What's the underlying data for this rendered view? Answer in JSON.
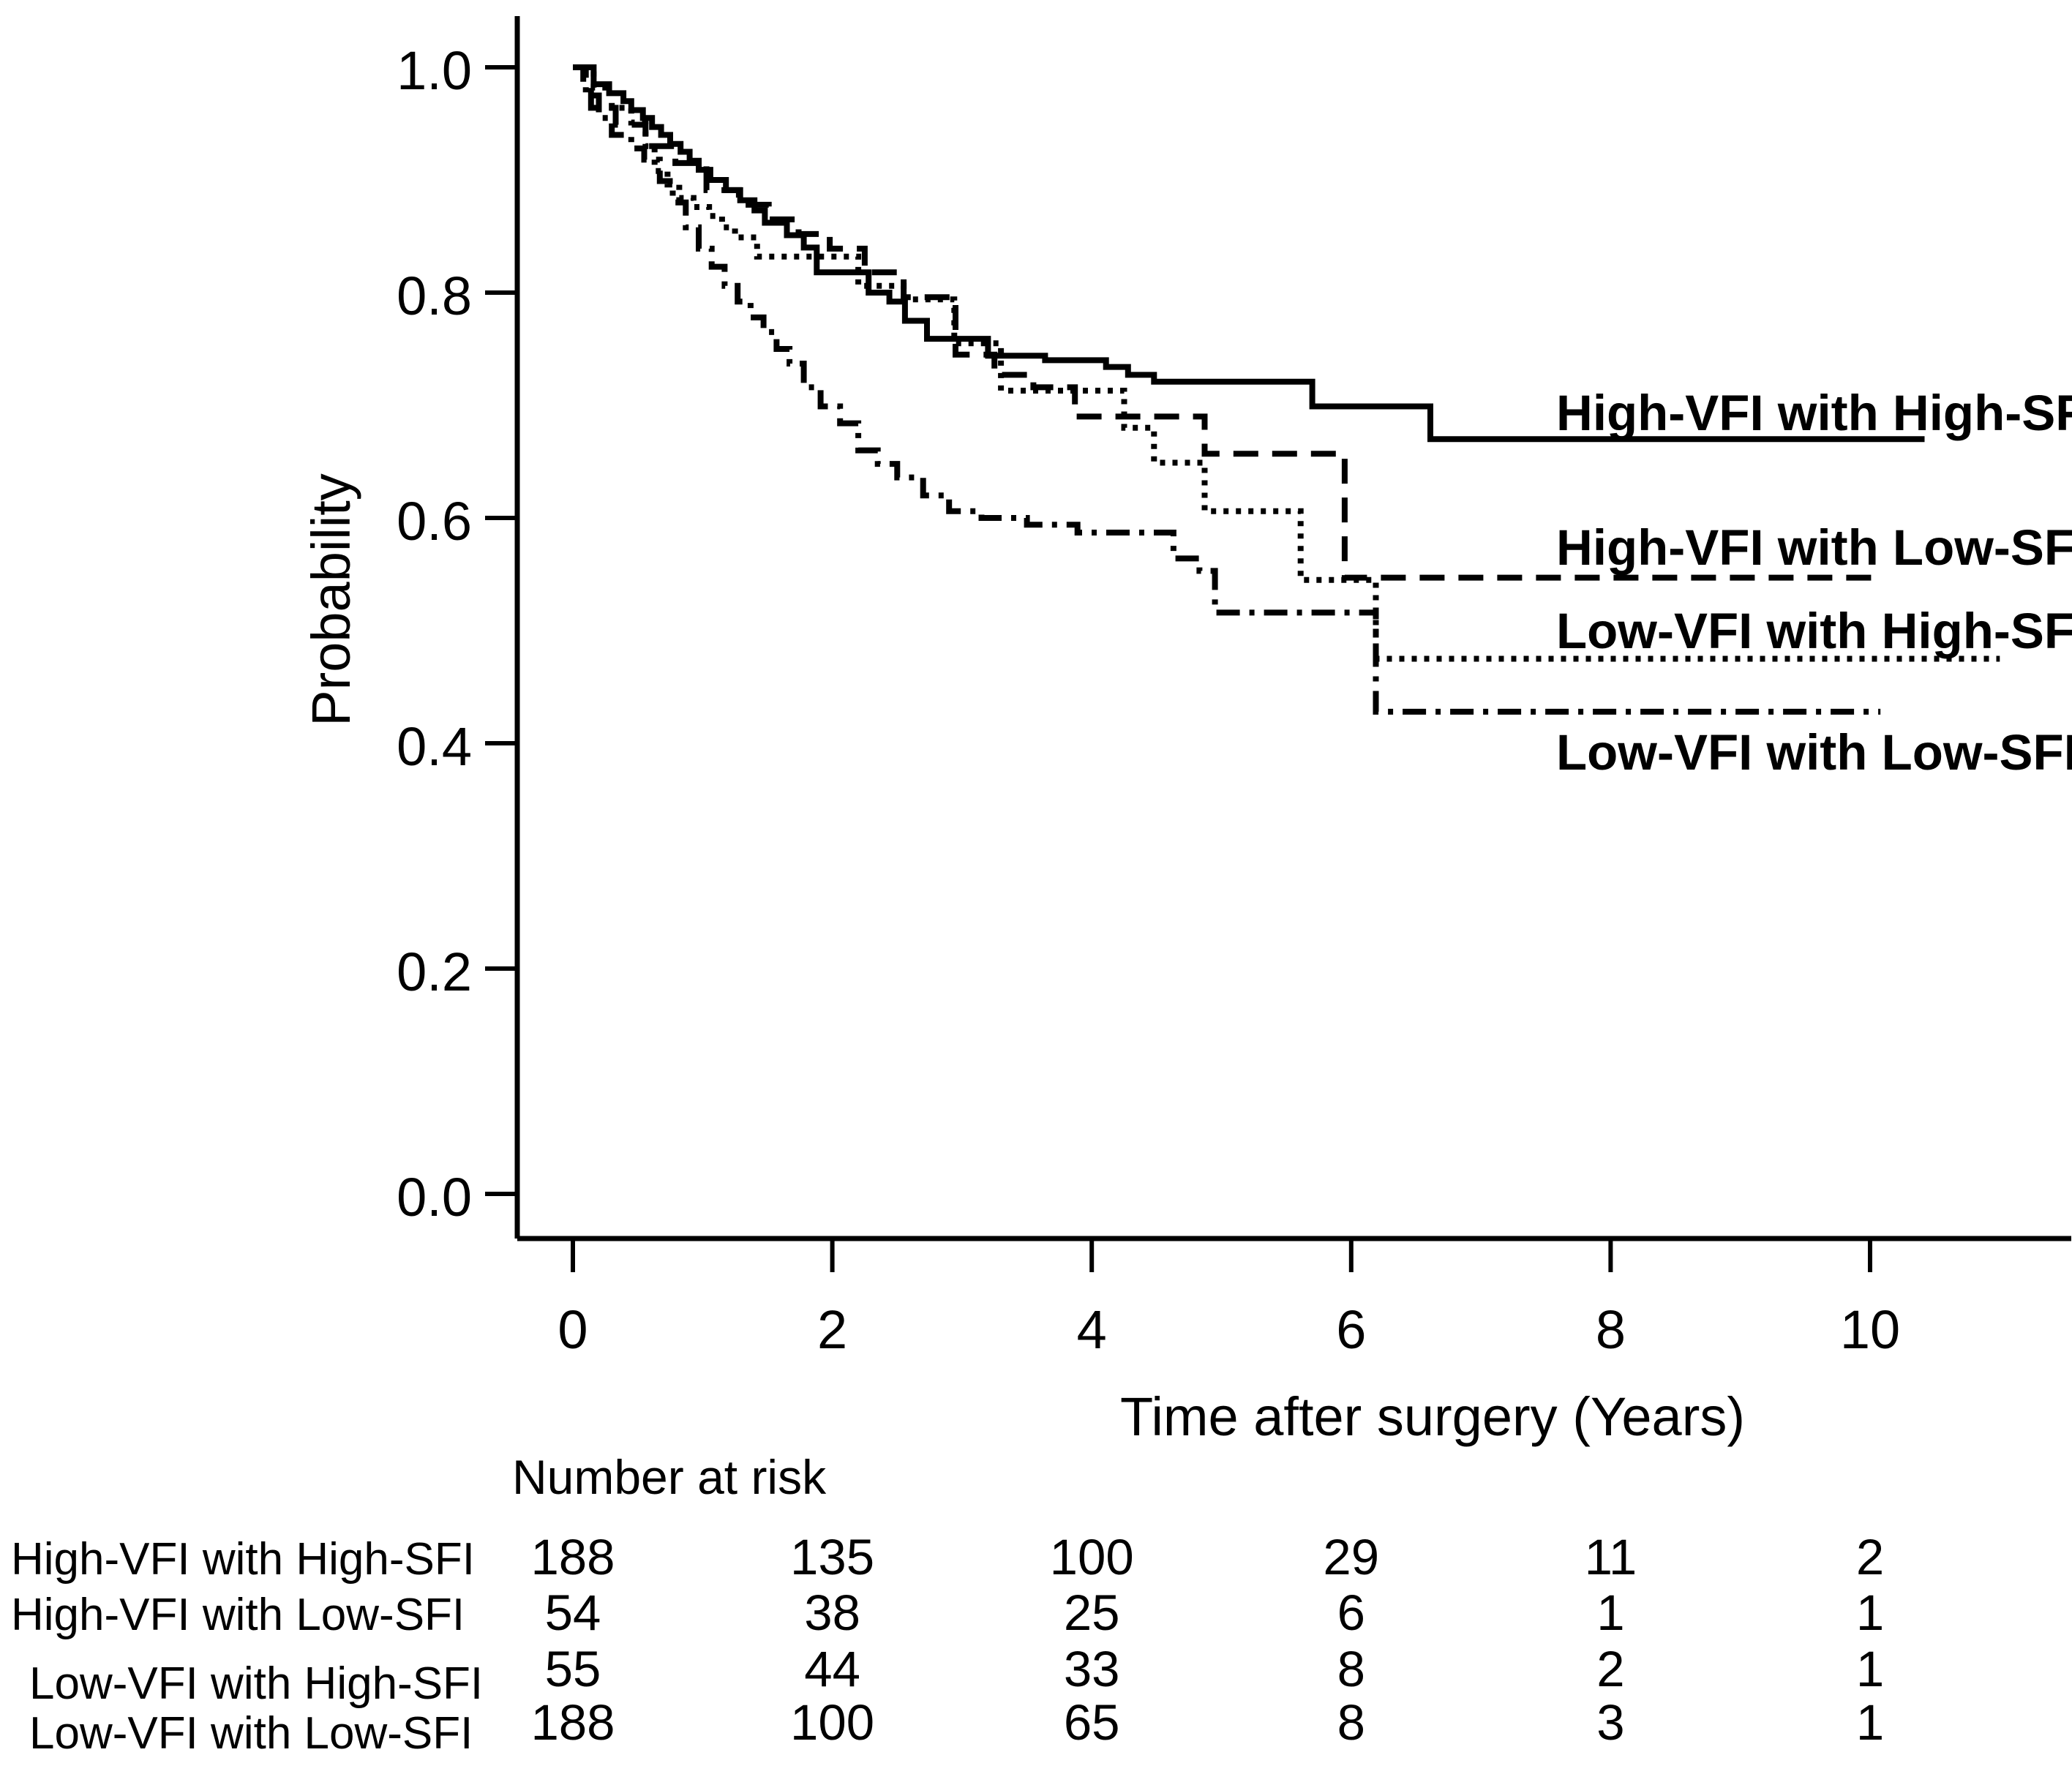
{
  "chart_data": {
    "type": "line",
    "subtype": "kaplan-meier-step",
    "title": "",
    "xlabel": "Time after surgery (Years)",
    "ylabel": "Probability",
    "x_ticks": [
      0,
      2,
      4,
      6,
      8,
      10
    ],
    "y_ticks": [
      0.0,
      0.2,
      0.4,
      0.6,
      0.8,
      1.0
    ],
    "xlim": [
      0,
      11.6
    ],
    "ylim": [
      0.0,
      1.0
    ],
    "grid": false,
    "legend_position": "inline-right",
    "line_color": "#000000",
    "text_color": "#000000",
    "background_color": "#ffffff",
    "series": [
      {
        "name": "High-VFI with High-SFI",
        "line_style": "solid",
        "end_time": 10.42,
        "final_value": 0.67,
        "points": [
          [
            0,
            1.0
          ],
          [
            0.16,
            0.985
          ],
          [
            0.28,
            0.977
          ],
          [
            0.39,
            0.97
          ],
          [
            0.45,
            0.962
          ],
          [
            0.54,
            0.955
          ],
          [
            0.61,
            0.947
          ],
          [
            0.68,
            0.94
          ],
          [
            0.75,
            0.932
          ],
          [
            0.83,
            0.925
          ],
          [
            0.9,
            0.917
          ],
          [
            0.97,
            0.909
          ],
          [
            1.06,
            0.9
          ],
          [
            1.18,
            0.891
          ],
          [
            1.29,
            0.882
          ],
          [
            1.4,
            0.873
          ],
          [
            1.48,
            0.862
          ],
          [
            1.65,
            0.851
          ],
          [
            1.78,
            0.84
          ],
          [
            1.88,
            0.818
          ],
          [
            2.28,
            0.8
          ],
          [
            2.44,
            0.792
          ],
          [
            2.56,
            0.775
          ],
          [
            2.73,
            0.759
          ],
          [
            3.2,
            0.744
          ],
          [
            3.64,
            0.74
          ],
          [
            4.11,
            0.734
          ],
          [
            4.28,
            0.727
          ],
          [
            4.48,
            0.721
          ],
          [
            5.7,
            0.699
          ],
          [
            6.61,
            0.67
          ]
        ]
      },
      {
        "name": "High-VFI with Low-SFI",
        "line_style": "dashed",
        "end_time": 10.08,
        "final_value": 0.547,
        "points": [
          [
            0,
            1.0
          ],
          [
            0.08,
            0.982
          ],
          [
            0.14,
            0.964
          ],
          [
            0.33,
            0.949
          ],
          [
            0.56,
            0.93
          ],
          [
            0.79,
            0.915
          ],
          [
            1.03,
            0.891
          ],
          [
            1.28,
            0.878
          ],
          [
            1.51,
            0.865
          ],
          [
            1.74,
            0.852
          ],
          [
            1.98,
            0.839
          ],
          [
            2.25,
            0.818
          ],
          [
            2.55,
            0.796
          ],
          [
            2.95,
            0.745
          ],
          [
            3.25,
            0.727
          ],
          [
            3.55,
            0.716
          ],
          [
            3.87,
            0.69
          ],
          [
            4.87,
            0.657
          ],
          [
            5.95,
            0.547
          ]
        ]
      },
      {
        "name": "Low-VFI with High-SFI",
        "line_style": "dotted",
        "end_time": 11.0,
        "final_value": 0.475,
        "points": [
          [
            0,
            1.0
          ],
          [
            0.16,
            0.982
          ],
          [
            0.3,
            0.964
          ],
          [
            0.45,
            0.951
          ],
          [
            0.56,
            0.93
          ],
          [
            0.63,
            0.908
          ],
          [
            0.73,
            0.896
          ],
          [
            0.82,
            0.884
          ],
          [
            0.93,
            0.876
          ],
          [
            1.05,
            0.868
          ],
          [
            1.15,
            0.858
          ],
          [
            1.25,
            0.849
          ],
          [
            1.42,
            0.832
          ],
          [
            2.2,
            0.806
          ],
          [
            2.55,
            0.794
          ],
          [
            2.94,
            0.755
          ],
          [
            3.3,
            0.713
          ],
          [
            4.25,
            0.68
          ],
          [
            4.48,
            0.649
          ],
          [
            4.87,
            0.606
          ],
          [
            5.61,
            0.545
          ],
          [
            6.19,
            0.475
          ]
        ]
      },
      {
        "name": "Low-VFI with Low-SFI",
        "line_style": "dash-dot",
        "end_time": 10.08,
        "final_value": 0.428,
        "points": [
          [
            0,
            1.0
          ],
          [
            0.1,
            0.975
          ],
          [
            0.2,
            0.955
          ],
          [
            0.3,
            0.94
          ],
          [
            0.45,
            0.928
          ],
          [
            0.55,
            0.918
          ],
          [
            0.67,
            0.899
          ],
          [
            0.77,
            0.88
          ],
          [
            0.87,
            0.858
          ],
          [
            0.97,
            0.839
          ],
          [
            1.07,
            0.823
          ],
          [
            1.17,
            0.806
          ],
          [
            1.27,
            0.792
          ],
          [
            1.37,
            0.778
          ],
          [
            1.47,
            0.765
          ],
          [
            1.57,
            0.75
          ],
          [
            1.67,
            0.737
          ],
          [
            1.78,
            0.716
          ],
          [
            1.91,
            0.699
          ],
          [
            2.06,
            0.684
          ],
          [
            2.2,
            0.66
          ],
          [
            2.35,
            0.648
          ],
          [
            2.5,
            0.636
          ],
          [
            2.7,
            0.62
          ],
          [
            2.9,
            0.606
          ],
          [
            3.15,
            0.6
          ],
          [
            3.5,
            0.594
          ],
          [
            3.89,
            0.587
          ],
          [
            4.63,
            0.564
          ],
          [
            4.83,
            0.553
          ],
          [
            4.95,
            0.516
          ],
          [
            6.19,
            0.428
          ]
        ]
      }
    ],
    "risk_table": {
      "header": "Number at risk",
      "time_points": [
        0,
        2,
        4,
        6,
        8,
        10
      ],
      "rows": [
        {
          "label": "High-VFI with High-SFI",
          "values": [
            188,
            135,
            100,
            29,
            11,
            2
          ]
        },
        {
          "label": "High-VFI with Low-SFI",
          "values": [
            54,
            38,
            25,
            6,
            1,
            1
          ]
        },
        {
          "label": "Low-VFI with High-SFI",
          "values": [
            55,
            44,
            33,
            8,
            2,
            1
          ]
        },
        {
          "label": "Low-VFI with Low-SFI",
          "values": [
            188,
            100,
            65,
            8,
            3,
            1
          ]
        }
      ]
    }
  }
}
